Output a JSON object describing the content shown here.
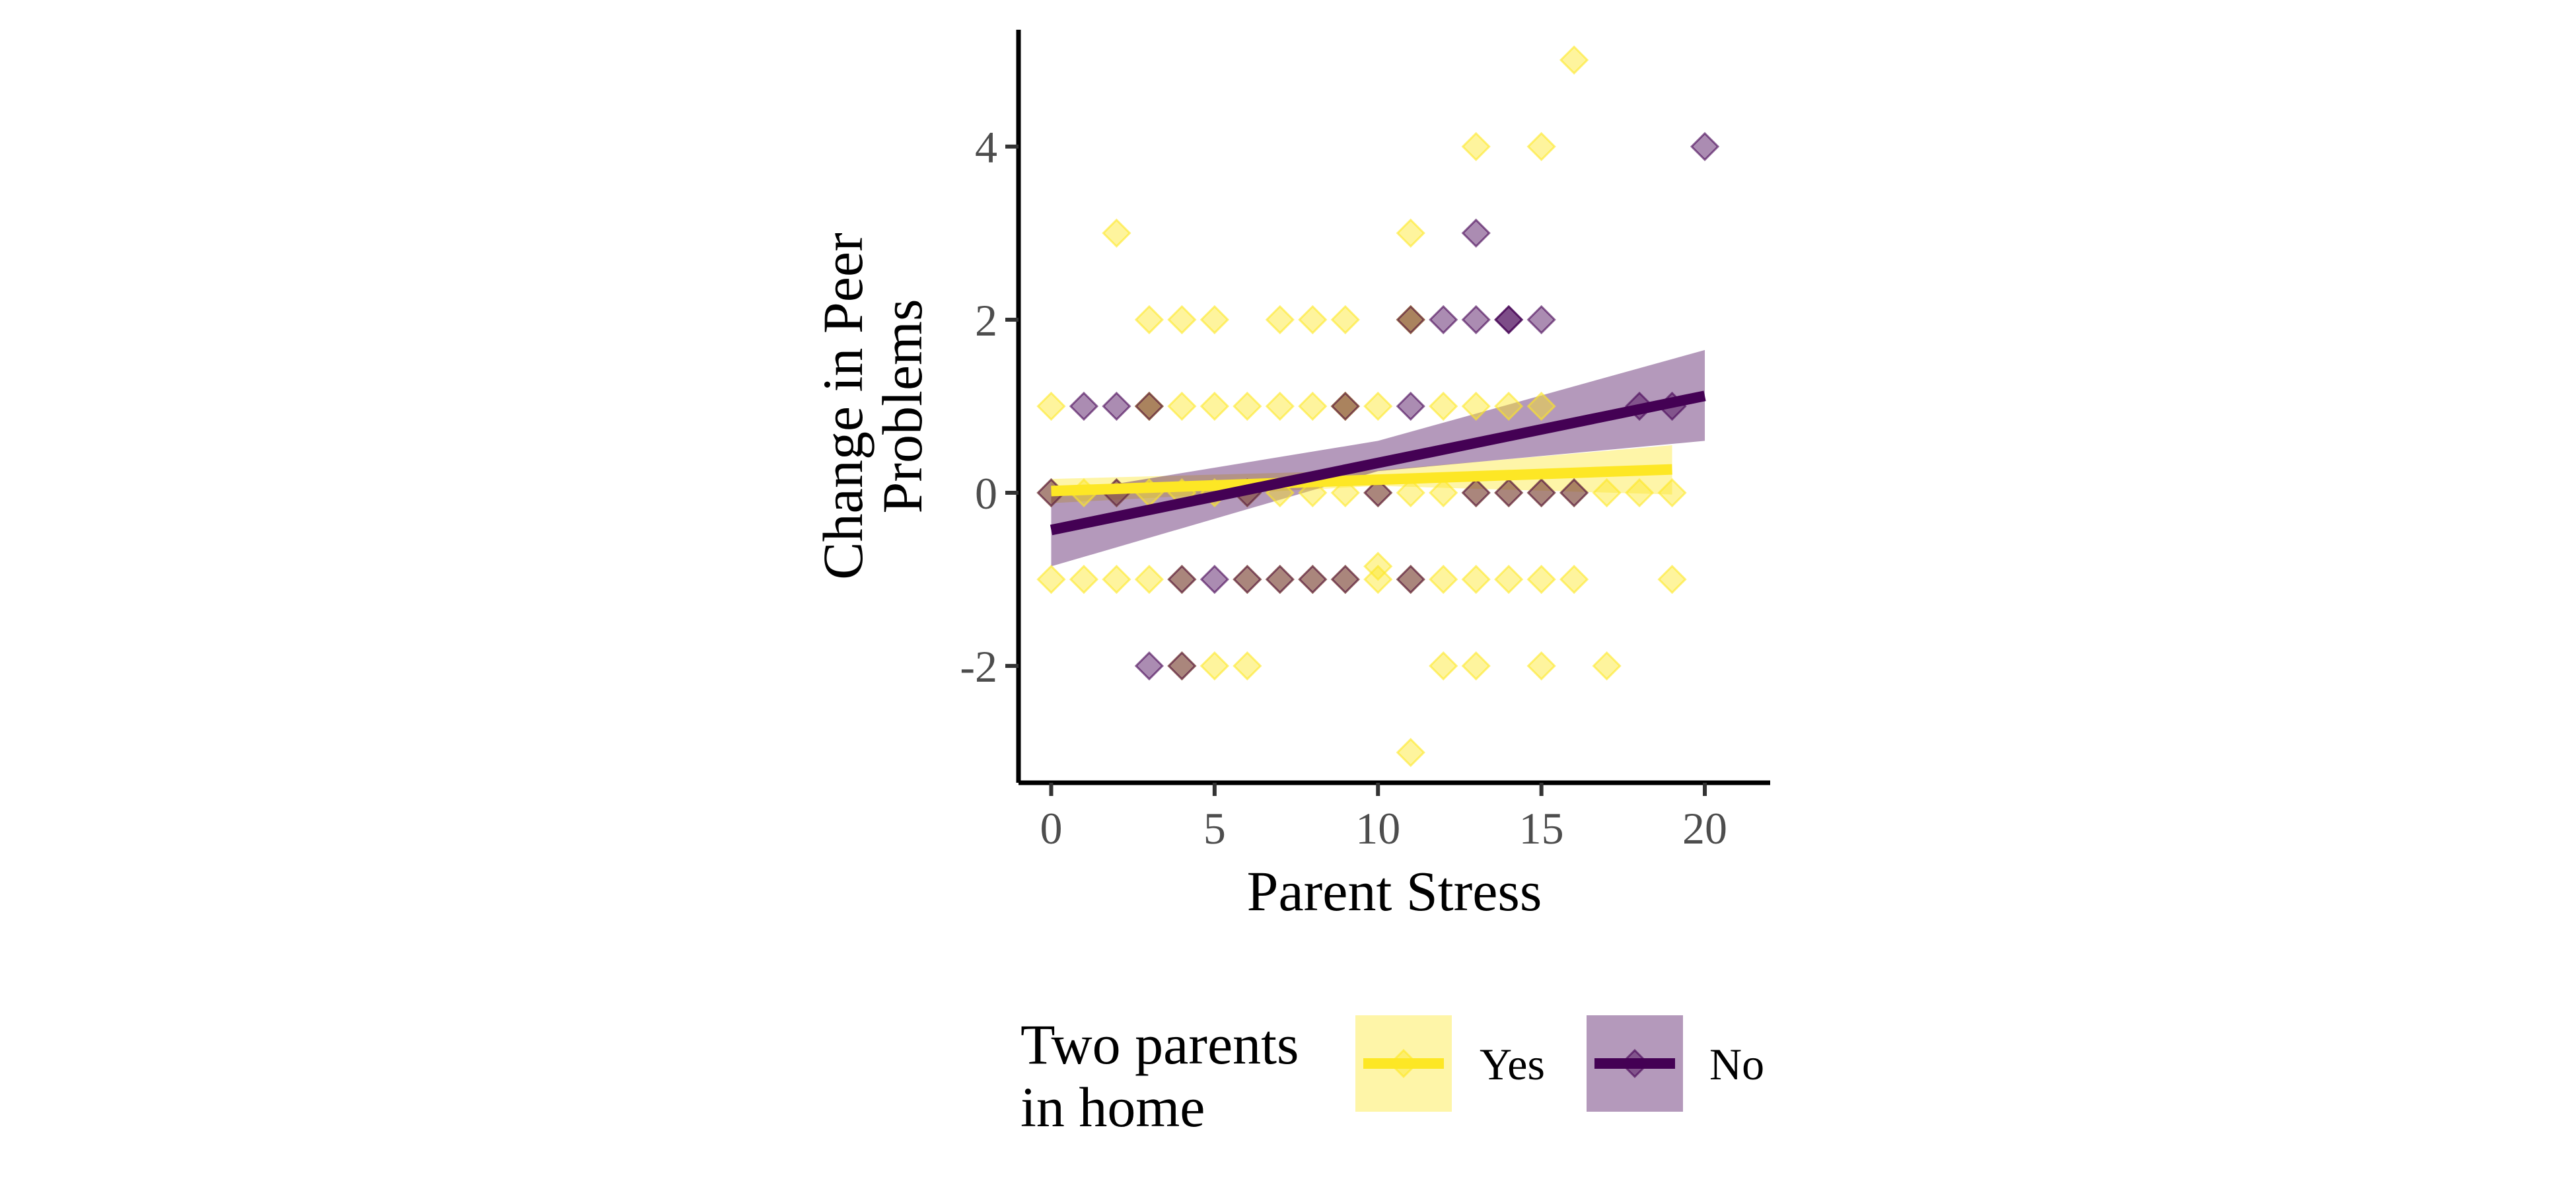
{
  "chart_data": {
    "type": "scatter",
    "title": "",
    "xlabel": "Parent Stress",
    "ylabel_lines": [
      "Change in Peer",
      "Problems"
    ],
    "xlim": [
      -1,
      22
    ],
    "ylim": [
      -3.35,
      5.35
    ],
    "x_ticks": [
      0,
      5,
      10,
      15,
      20
    ],
    "y_ticks": [
      -2,
      0,
      2,
      4
    ],
    "grid": false,
    "legend": {
      "title_lines": [
        "Two parents",
        "in home"
      ],
      "position": "bottom"
    },
    "series": [
      {
        "name": "Yes",
        "color": "#fde725",
        "band_color": "#fde725",
        "points": [
          [
            0,
            1
          ],
          [
            2,
            3
          ],
          [
            3,
            2
          ],
          [
            4,
            2
          ],
          [
            5,
            2
          ],
          [
            7,
            2
          ],
          [
            8,
            2
          ],
          [
            9,
            2
          ],
          [
            11,
            2
          ],
          [
            11,
            3
          ],
          [
            13,
            4
          ],
          [
            15,
            4
          ],
          [
            16,
            5
          ],
          [
            0,
            -1
          ],
          [
            1,
            -1
          ],
          [
            2,
            -1
          ],
          [
            3,
            -1
          ],
          [
            4,
            -1
          ],
          [
            6,
            -1
          ],
          [
            7,
            -1
          ],
          [
            8,
            -1
          ],
          [
            9,
            -1
          ],
          [
            10,
            -1
          ],
          [
            10,
            -0.85
          ],
          [
            11,
            -1
          ],
          [
            12,
            -1
          ],
          [
            13,
            -1
          ],
          [
            14,
            -1
          ],
          [
            15,
            -1
          ],
          [
            16,
            -1
          ],
          [
            19,
            -1
          ],
          [
            0,
            0
          ],
          [
            1,
            0
          ],
          [
            2,
            0
          ],
          [
            3,
            0
          ],
          [
            4,
            0
          ],
          [
            5,
            0
          ],
          [
            6,
            0
          ],
          [
            7,
            0
          ],
          [
            8,
            0
          ],
          [
            9,
            0
          ],
          [
            10,
            0
          ],
          [
            11,
            0
          ],
          [
            12,
            0
          ],
          [
            13,
            0
          ],
          [
            14,
            0
          ],
          [
            15,
            0
          ],
          [
            16,
            0
          ],
          [
            17,
            0
          ],
          [
            18,
            0
          ],
          [
            19,
            0
          ],
          [
            3,
            1
          ],
          [
            4,
            1
          ],
          [
            5,
            1
          ],
          [
            6,
            1
          ],
          [
            7,
            1
          ],
          [
            8,
            1
          ],
          [
            9,
            1
          ],
          [
            10,
            1
          ],
          [
            12,
            1
          ],
          [
            13,
            1
          ],
          [
            14,
            1
          ],
          [
            15,
            1
          ],
          [
            4,
            -2
          ],
          [
            5,
            -2
          ],
          [
            6,
            -2
          ],
          [
            12,
            -2
          ],
          [
            13,
            -2
          ],
          [
            15,
            -2
          ],
          [
            17,
            -2
          ],
          [
            11,
            -3
          ],
          [
            9,
            1
          ],
          [
            11,
            2
          ],
          [
            3,
            1
          ]
        ],
        "fit": {
          "x": [
            0,
            19
          ],
          "y": [
            0.02,
            0.27
          ]
        },
        "band": {
          "x": [
            0,
            10,
            19
          ],
          "upper": [
            0.16,
            0.26,
            0.55
          ],
          "lower": [
            -0.12,
            0.08,
            -0.02
          ]
        }
      },
      {
        "name": "No",
        "color": "#440154",
        "band_color": "#440154",
        "points": [
          [
            0,
            0
          ],
          [
            1,
            1
          ],
          [
            2,
            1
          ],
          [
            3,
            -2
          ],
          [
            5,
            -1
          ],
          [
            11,
            1
          ],
          [
            12,
            2
          ],
          [
            13,
            2
          ],
          [
            13,
            3
          ],
          [
            14,
            2
          ],
          [
            15,
            2
          ],
          [
            18,
            1
          ],
          [
            19,
            1
          ],
          [
            20,
            4
          ],
          [
            2,
            0
          ],
          [
            6,
            0
          ],
          [
            10,
            0
          ],
          [
            13,
            0
          ],
          [
            14,
            0
          ],
          [
            15,
            0
          ],
          [
            16,
            0
          ],
          [
            3,
            1
          ],
          [
            9,
            1
          ],
          [
            4,
            -2
          ],
          [
            7,
            -1
          ],
          [
            8,
            -1
          ],
          [
            9,
            -1
          ],
          [
            11,
            -1
          ],
          [
            4,
            -1
          ],
          [
            6,
            -1
          ],
          [
            11,
            2
          ],
          [
            14,
            2
          ]
        ],
        "fit": {
          "x": [
            0,
            20
          ],
          "y": [
            -0.43,
            1.12
          ]
        },
        "band": {
          "x": [
            0,
            10,
            20
          ],
          "upper": [
            -0.02,
            0.6,
            1.65
          ],
          "lower": [
            -0.85,
            0.25,
            0.6
          ]
        }
      }
    ]
  }
}
